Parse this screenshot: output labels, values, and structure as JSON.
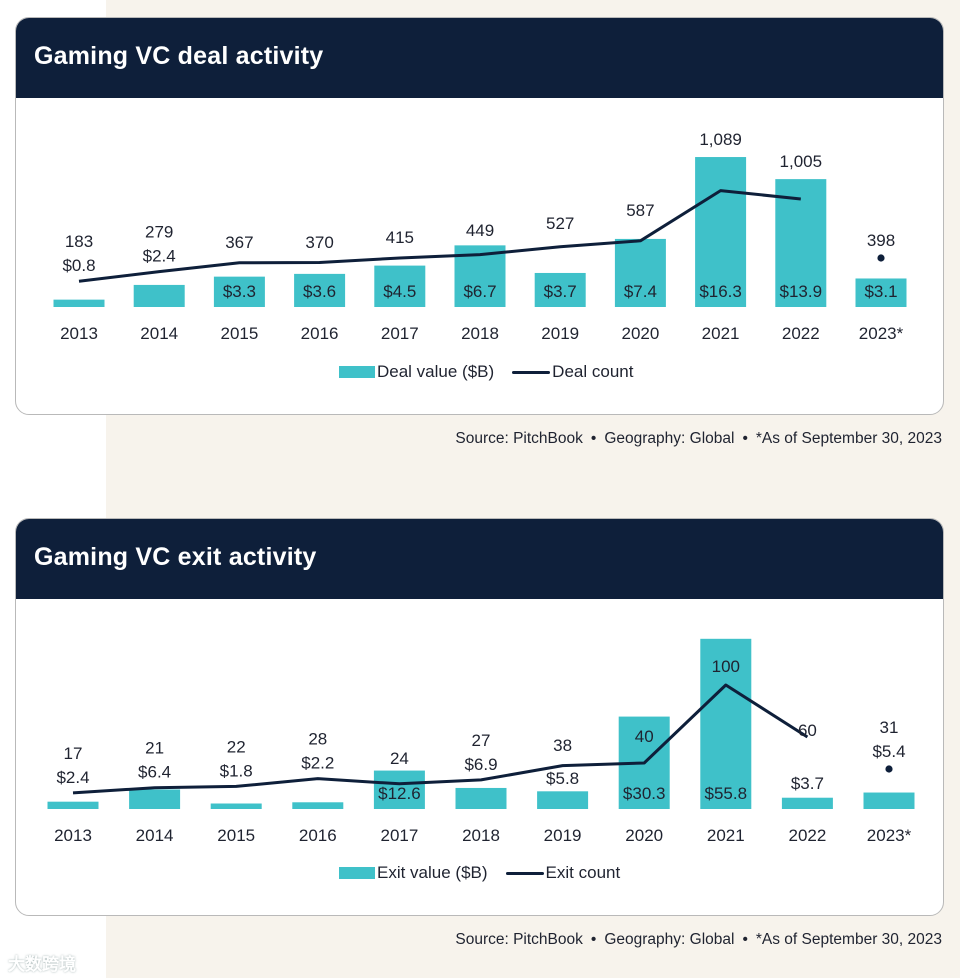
{
  "chart_data": [
    {
      "type": "bar",
      "title": "Gaming VC deal activity",
      "categories": [
        "2013",
        "2014",
        "2015",
        "2016",
        "2017",
        "2018",
        "2019",
        "2020",
        "2021",
        "2022",
        "2023*"
      ],
      "series": [
        {
          "name": "Deal value ($B)",
          "type": "bar",
          "color": "#3fc1c9",
          "values": [
            0.8,
            2.4,
            3.3,
            3.6,
            4.5,
            6.7,
            3.7,
            7.4,
            16.3,
            13.9,
            3.1
          ],
          "labels": [
            "$0.8",
            "$2.4",
            "$3.3",
            "$3.6",
            "$4.5",
            "$6.7",
            "$3.7",
            "$7.4",
            "$16.3",
            "$13.9",
            "$3.1"
          ]
        },
        {
          "name": "Deal count",
          "type": "line",
          "color": "#0e1f3a",
          "values": [
            183,
            279,
            367,
            370,
            415,
            449,
            527,
            587,
            1089,
            1005,
            398
          ],
          "labels": [
            "183",
            "279",
            "367",
            "370",
            "415",
            "449",
            "527",
            "587",
            "1,089",
            "1,005",
            "398"
          ]
        }
      ],
      "legend": [
        "Deal value ($B)",
        "Deal count"
      ],
      "legend_position": "bottom",
      "grid": false,
      "source": {
        "source": "Source: PitchBook",
        "geography": "Geography: Global",
        "note": "*As of September 30, 2023"
      }
    },
    {
      "type": "bar",
      "title": "Gaming VC exit activity",
      "categories": [
        "2013",
        "2014",
        "2015",
        "2016",
        "2017",
        "2018",
        "2019",
        "2020",
        "2021",
        "2022",
        "2023*"
      ],
      "series": [
        {
          "name": "Exit value ($B)",
          "type": "bar",
          "color": "#3fc1c9",
          "values": [
            2.4,
            6.4,
            1.8,
            2.2,
            12.6,
            6.9,
            5.8,
            30.3,
            55.8,
            3.7,
            5.4
          ],
          "labels": [
            "$2.4",
            "$6.4",
            "$1.8",
            "$2.2",
            "$12.6",
            "$6.9",
            "$5.8",
            "$30.3",
            "$55.8",
            "$3.7",
            "$5.4"
          ]
        },
        {
          "name": "Exit count",
          "type": "line",
          "color": "#0e1f3a",
          "values": [
            17,
            21,
            22,
            28,
            24,
            27,
            38,
            40,
            100,
            60,
            31
          ],
          "labels": [
            "17",
            "21",
            "22",
            "28",
            "24",
            "27",
            "38",
            "40",
            "100",
            "60",
            "31"
          ]
        }
      ],
      "legend": [
        "Exit value ($B)",
        "Exit count"
      ],
      "legend_position": "bottom",
      "grid": false,
      "source": {
        "source": "Source: PitchBook",
        "geography": "Geography: Global",
        "note": "*As of September 30, 2023"
      }
    }
  ],
  "watermark": "大数跨境"
}
